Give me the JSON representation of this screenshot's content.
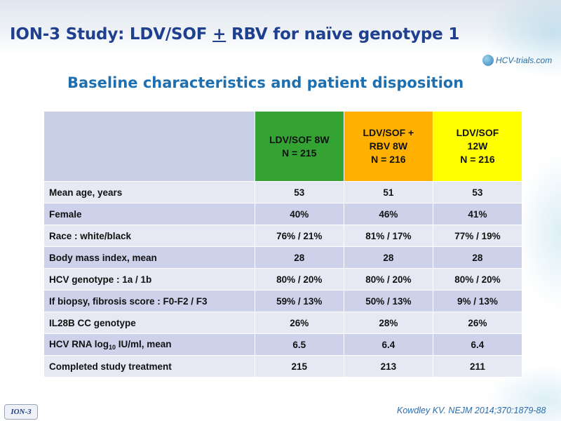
{
  "slide": {
    "title_prefix": "ION-3 Study: LDV/SOF ",
    "title_plus": "+",
    "title_suffix": " RBV for naïve genotype 1",
    "subtitle": "Baseline characteristics and patient disposition",
    "logo_text": "HCV-trials.com",
    "footer_tag": "ION-3",
    "citation": "Kowdley KV. NEJM 2014;370:1879-88"
  },
  "table": {
    "columns": [
      {
        "line1": "LDV/SOF 8W",
        "line2": "N = 215",
        "line3": "",
        "color": "#34a334"
      },
      {
        "line1": "LDV/SOF +",
        "line2": "RBV 8W",
        "line3": "N = 216",
        "color": "#ffb000"
      },
      {
        "line1": "LDV/SOF",
        "line2": "12W",
        "line3": "N = 216",
        "color": "#ffff00"
      }
    ],
    "rows": [
      {
        "label": "Mean age, years",
        "values": [
          "53",
          "51",
          "53"
        ]
      },
      {
        "label": "Female",
        "values": [
          "40%",
          "46%",
          "41%"
        ]
      },
      {
        "label": "Race : white/black",
        "values": [
          "76% / 21%",
          "81% / 17%",
          "77% / 19%"
        ]
      },
      {
        "label": "Body mass index, mean",
        "values": [
          "28",
          "28",
          "28"
        ]
      },
      {
        "label": "HCV genotype : 1a / 1b",
        "values": [
          "80% / 20%",
          "80% / 20%",
          "80% / 20%"
        ]
      },
      {
        "label": "If biopsy, fibrosis score : F0-F2 / F3",
        "values": [
          "59% / 13%",
          "50% / 13%",
          "9% / 13%"
        ]
      },
      {
        "label": "IL28B CC genotype",
        "values": [
          "26%",
          "28%",
          "26%"
        ]
      },
      {
        "label_pre": "HCV RNA log",
        "label_sub": "10",
        "label_post": " IU/ml, mean",
        "values": [
          "6.5",
          "6.4",
          "6.4"
        ]
      },
      {
        "label": "Completed study treatment",
        "values": [
          "215",
          "213",
          "211"
        ]
      }
    ]
  }
}
